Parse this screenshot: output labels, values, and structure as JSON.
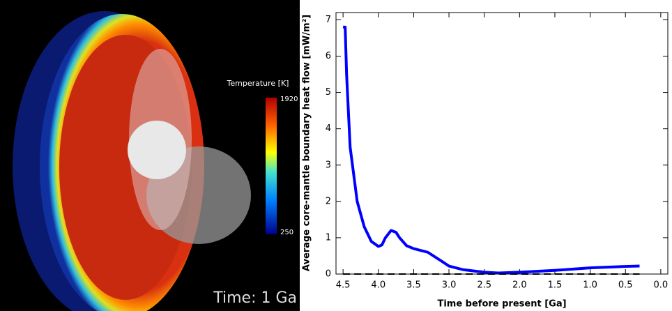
{
  "render": {
    "colorbar_title": "Temperature [K]",
    "colorbar_ticks": [
      1920,
      250
    ],
    "time_label": "Time: 1 Ga"
  },
  "chart_data": {
    "type": "line",
    "xlabel": "Time before present [Ga]",
    "ylabel": "Average core-mantle boundary heat flow [mW/m²]",
    "xlim": [
      4.6,
      -0.1
    ],
    "ylim": [
      0,
      7.2
    ],
    "xticks": [
      {
        "value": 4.5,
        "label": "4.5"
      },
      {
        "value": 4,
        "label": "4.0"
      },
      {
        "value": 3.5,
        "label": "3.5"
      },
      {
        "value": 3,
        "label": "3.0"
      },
      {
        "value": 2.5,
        "label": "2.5"
      },
      {
        "value": 2,
        "label": "2.0"
      },
      {
        "value": 1.5,
        "label": "1.5"
      },
      {
        "value": 1,
        "label": "1.0"
      },
      {
        "value": 0.5,
        "label": "0.5"
      },
      {
        "value": 0,
        "label": "0.0"
      }
    ],
    "yticks": [
      0,
      1,
      2,
      3,
      4,
      5,
      6,
      7
    ],
    "series": [
      {
        "color": "#0000ff",
        "style": "solid",
        "x": [
          4.5,
          4.47,
          4.45,
          4.4,
          4.3,
          4.2,
          4.1,
          4.0,
          3.95,
          3.9,
          3.82,
          3.75,
          3.7,
          3.6,
          3.5,
          3.3,
          3.1,
          3.0,
          2.8,
          2.5,
          2.3,
          2.0,
          1.5,
          1.0,
          0.5,
          0.3
        ],
        "values": [
          6.8,
          6.8,
          5.5,
          3.5,
          2.0,
          1.3,
          0.9,
          0.76,
          0.8,
          1.0,
          1.2,
          1.15,
          1.0,
          0.78,
          0.7,
          0.6,
          0.35,
          0.22,
          0.12,
          0.05,
          0.03,
          0.05,
          0.1,
          0.17,
          0.21,
          0.22
        ]
      },
      {
        "color": "#000000",
        "style": "dashed",
        "x": [
          4.5,
          0.3
        ],
        "values": [
          0,
          0
        ]
      }
    ]
  }
}
